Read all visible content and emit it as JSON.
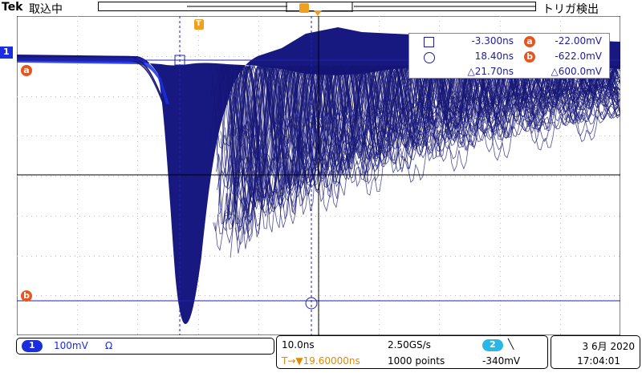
{
  "header": {
    "brand": "Tek",
    "acquire_status": "取込中",
    "trigger_status": "トリガ検出"
  },
  "markers": {
    "channel1": "1",
    "cursor_a": "a",
    "cursor_b": "b",
    "trigger_pos": "T"
  },
  "measure": {
    "row1": {
      "time": "-3.300ns",
      "volt": "-22.00mV"
    },
    "row2": {
      "time": "18.40ns",
      "volt": "-622.0mV"
    },
    "row3": {
      "time": "△21.70ns",
      "volt": "△600.0mV"
    }
  },
  "status": {
    "ch_num": "1",
    "volts_div": "100mV",
    "impedance": "Ω",
    "time_div": "10.0ns",
    "trig_pos": "T→▼19.60000ns",
    "sample_rate": "2.50GS/s",
    "record_length": "1000 points",
    "trig_ch": "2",
    "trig_slope": "╲",
    "trig_level": "-340mV",
    "date": "3 6月 2020",
    "time": "17:04:01"
  },
  "colors": {
    "trace": "#151575",
    "trace_dense": "#0c0c7a",
    "ch1": "#1a2ee0",
    "cursor": "#2222aa",
    "accent": "#e8541e",
    "trigger": "#f0a020",
    "ch2": "#2ab7e8"
  }
}
